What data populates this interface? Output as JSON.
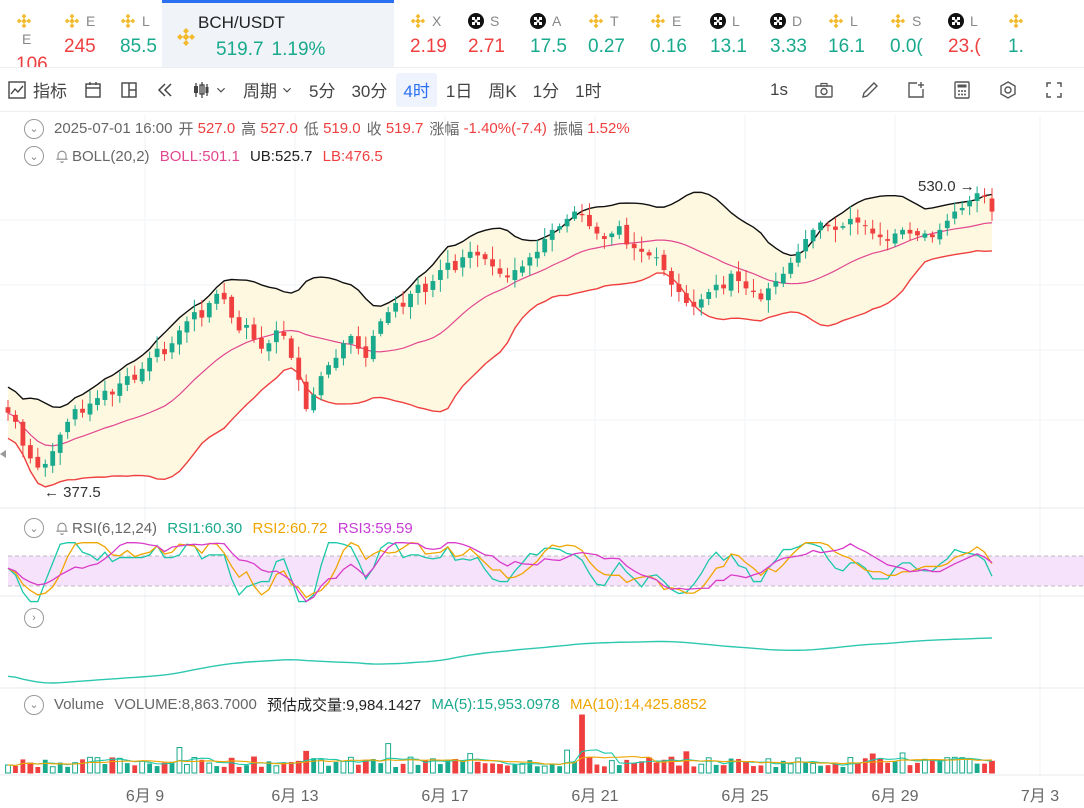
{
  "tickers": [
    {
      "name": "E",
      "price": "106",
      "dir": "down",
      "icon": "bnb-icon"
    },
    {
      "name": "E",
      "price": "245",
      "dir": "down",
      "icon": "bnb-icon"
    },
    {
      "name": "L",
      "price": "85.5",
      "dir": "up",
      "icon": "bnb-icon"
    },
    {
      "name": "BCH/USDT",
      "price": "519.7",
      "pct": "1.19%",
      "dir": "up",
      "icon": "bnb-icon",
      "active": true
    },
    {
      "name": "X",
      "price": "2.19",
      "dir": "down",
      "icon": "bnb-icon"
    },
    {
      "name": "S",
      "price": "2.71",
      "dir": "down",
      "icon": "okx-icon"
    },
    {
      "name": "A",
      "price": "17.5",
      "dir": "up",
      "icon": "okx-icon"
    },
    {
      "name": "T",
      "price": "0.27",
      "dir": "up",
      "icon": "bnb-icon"
    },
    {
      "name": "E",
      "price": "0.16",
      "dir": "up",
      "icon": "bnb-icon"
    },
    {
      "name": "L",
      "price": "13.1",
      "dir": "up",
      "icon": "okx-icon"
    },
    {
      "name": "D",
      "price": "3.33",
      "dir": "up",
      "icon": "okx-icon"
    },
    {
      "name": "L",
      "price": "16.1",
      "dir": "up",
      "icon": "bnb-icon"
    },
    {
      "name": "S",
      "price": "0.0(",
      "dir": "up",
      "icon": "bnb-icon"
    },
    {
      "name": "L",
      "price": "23.(",
      "dir": "down",
      "icon": "okx-icon"
    },
    {
      "name": "",
      "price": "1.",
      "dir": "up",
      "icon": "bnb-icon"
    }
  ],
  "toolbar": {
    "indicators": "指标",
    "period": "周期",
    "intervals": [
      "5分",
      "30分",
      "4时",
      "1日",
      "周K",
      "1分",
      "1时"
    ],
    "active_interval": "4时",
    "refresh": "1s"
  },
  "ohlc": {
    "datetime": "2025-07-01 16:00",
    "open_label": "开",
    "open": "527.0",
    "high_label": "高",
    "high": "527.0",
    "low_label": "低",
    "low": "519.0",
    "close_label": "收",
    "close": "519.7",
    "change_label": "涨幅",
    "change": "-1.40%(-7.4)",
    "amp_label": "振幅",
    "amp": "1.52%"
  },
  "boll": {
    "label": "BOLL(20,2)",
    "boll": "BOLL:501.1",
    "ub": "UB:525.7",
    "lb": "LB:476.5"
  },
  "rsi": {
    "label": "RSI(6,12,24)",
    "rsi1": "RSI1:60.30",
    "rsi2": "RSI2:60.72",
    "rsi3": "RSI3:59.59"
  },
  "volume": {
    "label": "Volume",
    "volume": "VOLUME:8,863.7000",
    "est": "预估成交量:9,984.1427",
    "ma5": "MA(5):15,953.0978",
    "ma10": "MA(10):14,425.8852"
  },
  "colors": {
    "up": "#19a98c",
    "down": "#ef3f3f",
    "accent": "#2b6ff2",
    "boll": "#e0478f",
    "ub": "#111111",
    "lb": "#ef3f3f",
    "rsi1": "#19c8a8",
    "rsi2": "#f0a500",
    "rsi3": "#d93bc9",
    "band_fill": "#fff8e1",
    "rsi_fill": "#f6e3fb"
  },
  "chart_data": {
    "type": "candlestick",
    "symbol": "BCH/USDT",
    "interval": "4时",
    "x_tick_labels": [
      "6月 9",
      "6月 13",
      "6月 17",
      "6月 21",
      "6月 25",
      "6月 29",
      "7月 3"
    ],
    "annotations": {
      "max": "530.0",
      "min": "377.5"
    },
    "close_series_approx": [
      410,
      405,
      392,
      385,
      380,
      382,
      389,
      398,
      405,
      412,
      410,
      415,
      418,
      422,
      420,
      426,
      430,
      428,
      434,
      440,
      445,
      442,
      448,
      455,
      460,
      465,
      462,
      470,
      475,
      472,
      462,
      455,
      458,
      450,
      445,
      448,
      455,
      452,
      440,
      428,
      412,
      420,
      430,
      436,
      440,
      448,
      452,
      445,
      440,
      452,
      460,
      465,
      470,
      468,
      475,
      480,
      476,
      482,
      488,
      492,
      488,
      495,
      498,
      496,
      494,
      490,
      486,
      484,
      488,
      490,
      495,
      498,
      505,
      510,
      512,
      516,
      520,
      518,
      512,
      508,
      505,
      508,
      512,
      502,
      500,
      498,
      496,
      495,
      488,
      480,
      476,
      470,
      468,
      472,
      476,
      480,
      478,
      486,
      482,
      478,
      476,
      472,
      478,
      482,
      486,
      492,
      498,
      505,
      510,
      514,
      512,
      510,
      512,
      516,
      514,
      512,
      508,
      506,
      504,
      508,
      510,
      508,
      507,
      508,
      506,
      510,
      515,
      520,
      522,
      526,
      530,
      528,
      520
    ],
    "rsi_range": [
      0,
      100
    ]
  }
}
